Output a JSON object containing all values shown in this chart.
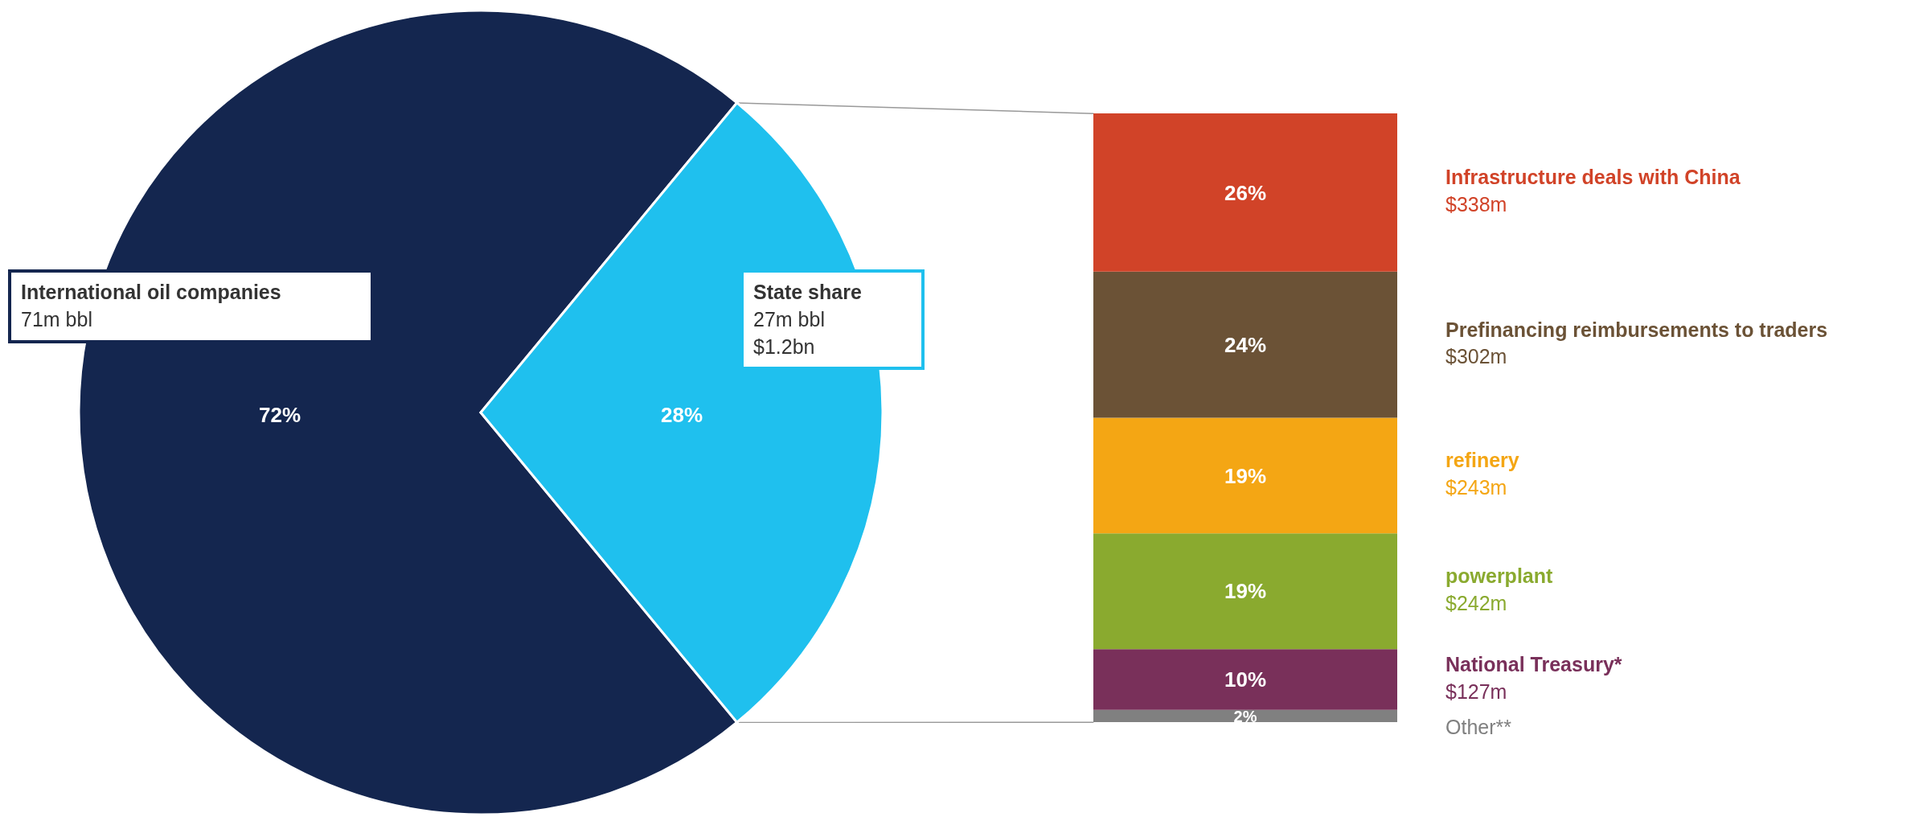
{
  "chart_data": [
    {
      "type": "pie",
      "categories": [
        "International oil companies",
        "State share"
      ],
      "values": [
        72,
        28
      ],
      "colors": [
        "#14264f",
        "#1fc0ee"
      ],
      "value_labels": [
        "72%",
        "28%"
      ],
      "annotations": [
        "71m bbl",
        "27m bbl",
        "$1.2bn"
      ]
    },
    {
      "type": "bar",
      "stacked": true,
      "categories": [
        null
      ],
      "series": [
        {
          "name": "Other**",
          "color": "#808080",
          "values": [
            2
          ],
          "value_labels": [
            "2%"
          ]
        },
        {
          "name": "National Treasury*",
          "color": "#79305a",
          "values": [
            10
          ],
          "value_labels": [
            "10%"
          ]
        },
        {
          "name": "powerplant",
          "color": "#8aaa2f",
          "values": [
            19
          ],
          "value_labels": [
            "19%"
          ]
        },
        {
          "name": "refinery",
          "color": "#f4a614",
          "values": [
            19
          ],
          "value_labels": [
            "19%"
          ]
        },
        {
          "name": "Prefinancing reimbursements to traders",
          "color": "#6b5236",
          "values": [
            24
          ],
          "value_labels": [
            "24%"
          ]
        },
        {
          "name": "Infrastructure deals with China",
          "color": "#d14328",
          "values": [
            26
          ],
          "value_labels": [
            "26%"
          ]
        }
      ],
      "annotations": [
        "$338m",
        "$302m",
        "$243m",
        "$242m",
        "$127m"
      ]
    }
  ]
}
